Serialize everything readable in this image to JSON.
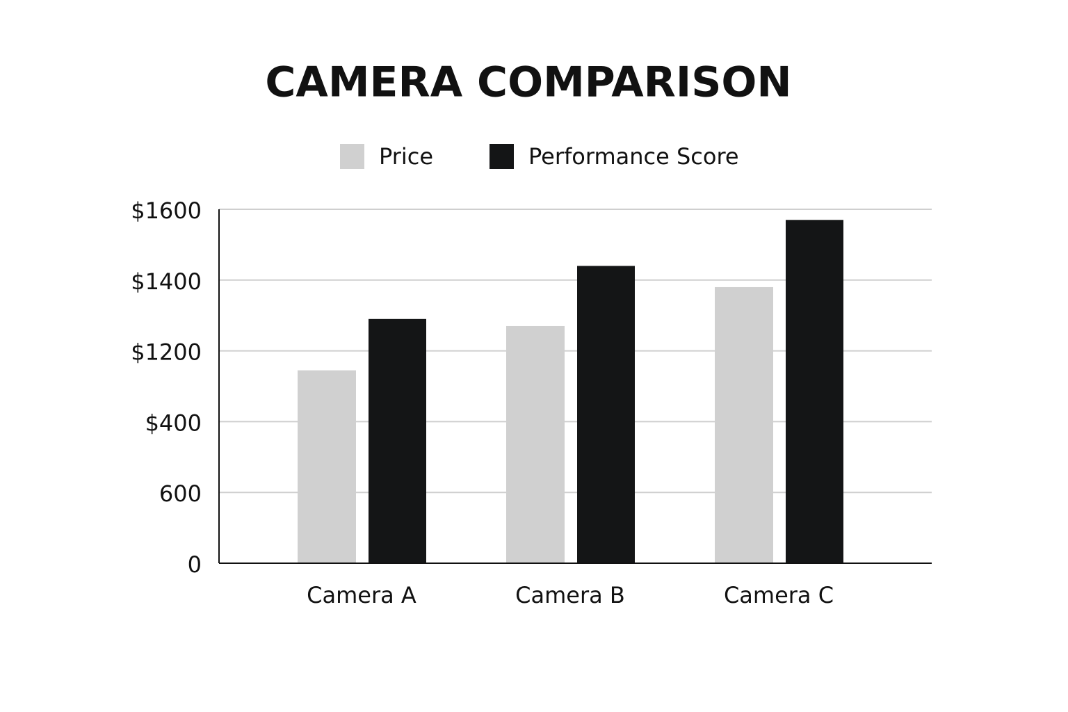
{
  "chart_data": {
    "type": "bar",
    "title": "CAMERA COMPARISON",
    "categories": [
      "Camera A",
      "Camera B",
      "Camera C"
    ],
    "series": [
      {
        "name": "Price",
        "color": "#d0d0d0",
        "values": [
          980,
          1270,
          1380
        ]
      },
      {
        "name": "Performance Score",
        "color": "#141516",
        "values": [
          1290,
          1440,
          1570
        ]
      }
    ],
    "ylim": [
      0,
      1600
    ],
    "yticks": [
      0,
      600,
      {
        "value": 400,
        "label": "$400"
      },
      {
        "value": 1200,
        "label": "$1200"
      },
      {
        "value": 1400,
        "label": "$1400"
      },
      {
        "value": 1600,
        "label": "$1600"
      }
    ],
    "grid": true,
    "legend": "top"
  }
}
